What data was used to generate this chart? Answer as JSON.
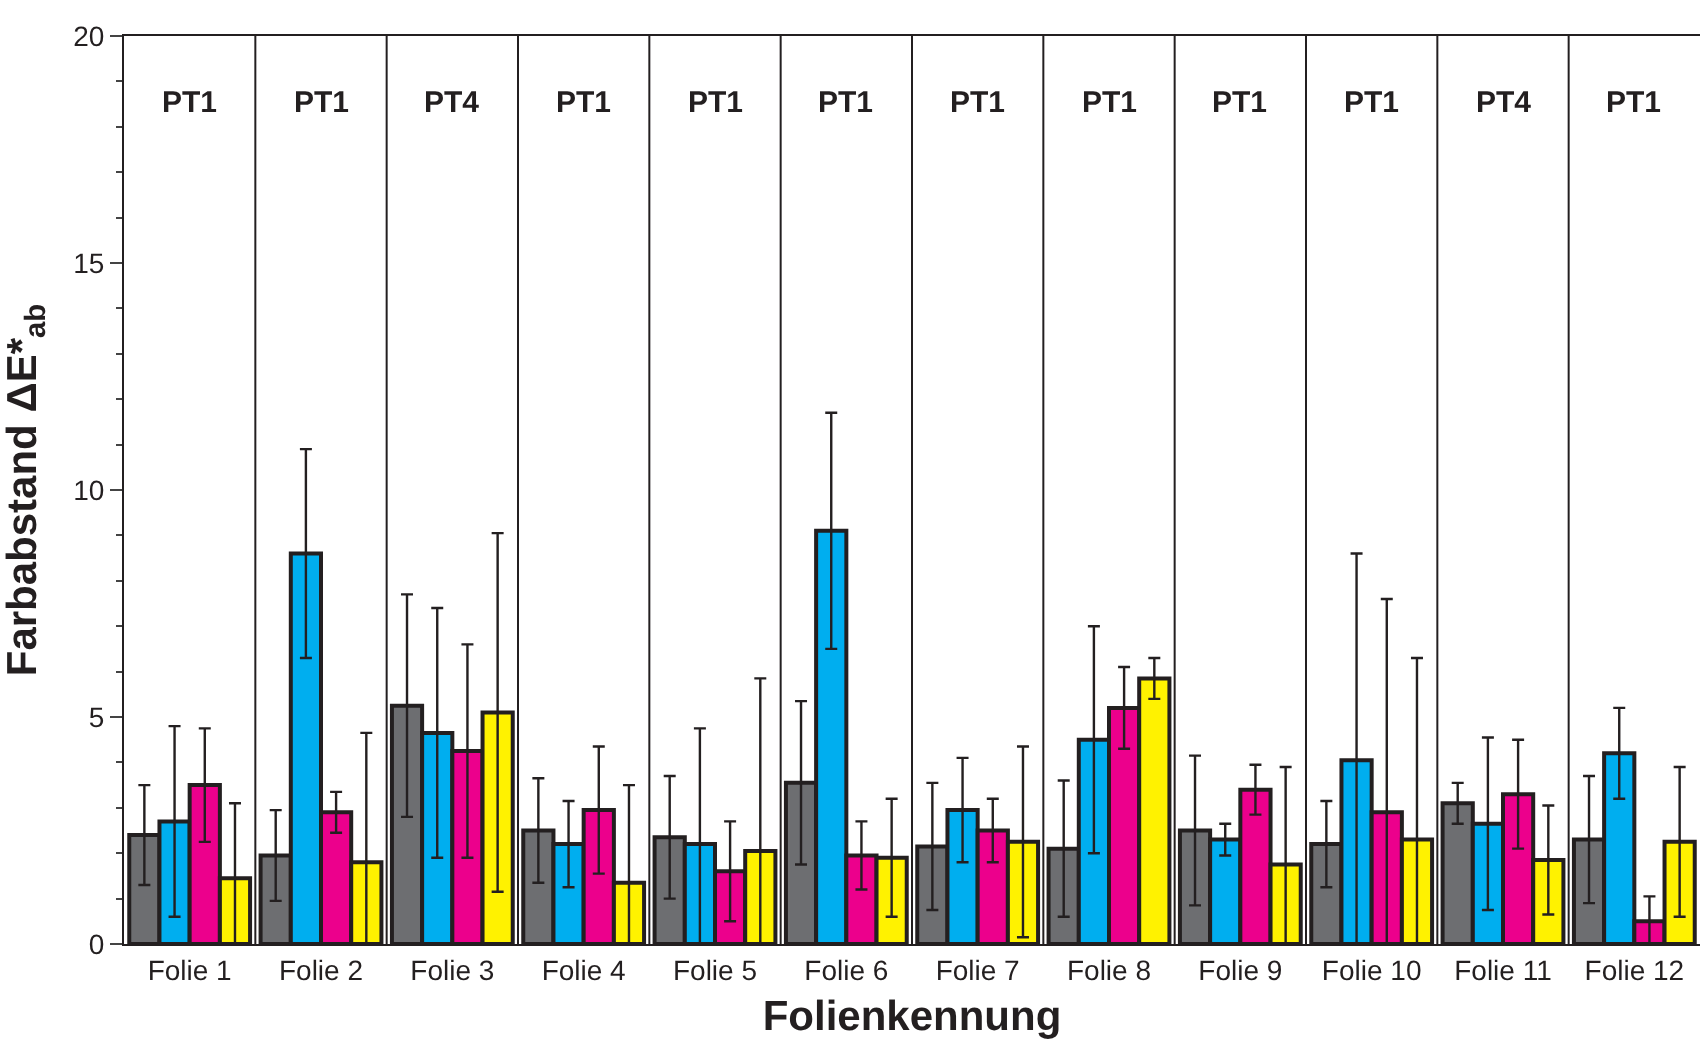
{
  "chart_data": {
    "type": "bar",
    "xlabel": "Folienkennung",
    "ylabel": "Farbabstand ΔE*$_{ab}$",
    "categories": [
      "Folie 1",
      "Folie 2",
      "Folie 3",
      "Folie 4",
      "Folie 5",
      "Folie 6",
      "Folie 7",
      "Folie 8",
      "Folie 9",
      "Folie 10",
      "Folie 11",
      "Folie 12"
    ],
    "series": [
      {
        "color": "#6d6e71",
        "values": [
          2.4,
          1.95,
          5.25,
          2.5,
          2.35,
          3.55,
          2.15,
          2.1,
          2.5,
          2.2,
          3.1,
          2.3
        ],
        "errors": [
          1.1,
          1.0,
          2.45,
          1.15,
          1.35,
          1.8,
          1.4,
          1.5,
          1.65,
          0.95,
          0.45,
          1.4
        ]
      },
      {
        "color": "#00aeef",
        "values": [
          2.7,
          8.6,
          4.65,
          2.2,
          2.2,
          9.1,
          2.95,
          4.5,
          2.3,
          4.05,
          2.65,
          4.2
        ],
        "errors": [
          2.1,
          2.3,
          2.75,
          0.95,
          2.55,
          2.6,
          1.15,
          2.5,
          0.35,
          4.55,
          1.9,
          1.0
        ]
      },
      {
        "color": "#ec008c",
        "values": [
          3.5,
          2.9,
          4.25,
          2.95,
          1.6,
          1.95,
          2.5,
          5.2,
          3.4,
          2.9,
          3.3,
          0.5
        ],
        "errors": [
          1.25,
          0.45,
          2.35,
          1.4,
          1.1,
          0.75,
          0.7,
          0.9,
          0.55,
          4.7,
          1.2,
          0.55
        ]
      },
      {
        "color": "#fff200",
        "values": [
          1.45,
          1.8,
          5.1,
          1.35,
          2.05,
          1.9,
          2.25,
          5.85,
          1.75,
          2.3,
          1.85,
          2.25
        ],
        "errors": [
          1.65,
          2.85,
          3.95,
          2.15,
          3.8,
          1.3,
          2.1,
          0.45,
          2.15,
          4.0,
          1.2,
          1.65
        ]
      }
    ],
    "ylim": [
      0,
      20
    ],
    "yticks": [
      0,
      5,
      10,
      15,
      20
    ],
    "legend": false,
    "annotations": [
      "PT1",
      "PT1",
      "PT4",
      "PT1",
      "PT1",
      "PT1",
      "PT1",
      "PT1",
      "PT1",
      "PT1",
      "PT4",
      "PT1"
    ]
  }
}
